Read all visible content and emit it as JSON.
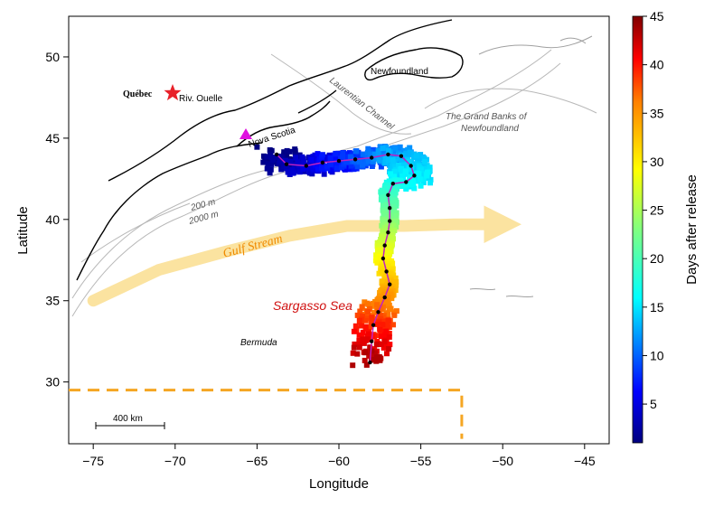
{
  "map": {
    "xlabel": "Longitude",
    "ylabel": "Latitude",
    "x_ticks": [
      "−75",
      "−70",
      "−65",
      "−60",
      "−55",
      "−50",
      "−45"
    ],
    "y_ticks": [
      "30",
      "35",
      "40",
      "45",
      "50"
    ],
    "xlim": [
      -76.5,
      -43.5
    ],
    "ylim": [
      26.2,
      52.5
    ],
    "labels": {
      "quebec": "Québec",
      "riv_ouelle": "Riv. Ouelle",
      "newfoundland": "Newfoundland",
      "laurentian": "Laurentian Channel",
      "grand_banks_1": "The Grand Banks of",
      "grand_banks_2": "Newfoundland",
      "nova_scotia": "Nova Scotia",
      "depth_200": "200 m",
      "depth_2000": "2000 m",
      "gulf_stream": "Gulf Stream",
      "sargasso": "Sargasso Sea",
      "bermuda": "Bermuda",
      "scale": "400 km"
    },
    "colors": {
      "gulf_stream": "#fbe3a0",
      "gulf_stream_text": "#f08a00",
      "sargasso_text": "#d01010",
      "boundary_dash": "#f5a623",
      "release_star": "#e8222a",
      "release_marker": "#e010e0",
      "track_line": "#c020c0"
    }
  },
  "colorbar": {
    "label": "Days after release",
    "ticks": [
      "5",
      "10",
      "15",
      "20",
      "25",
      "30",
      "35",
      "40",
      "45"
    ],
    "range": [
      1,
      45
    ],
    "colors": [
      "#00007f",
      "#0000ff",
      "#0080ff",
      "#00ffff",
      "#80ff80",
      "#ffff00",
      "#ff8000",
      "#ff0000",
      "#7f0000"
    ]
  },
  "chart_data": {
    "type": "scatter",
    "title": "",
    "xlabel": "Longitude",
    "ylabel": "Latitude",
    "xlim": [
      -76.5,
      -43.5
    ],
    "ylim": [
      26.2,
      52.5
    ],
    "color_variable": "Days after release",
    "track": {
      "lon": [
        -63.8,
        -63.2,
        -62.0,
        -61.0,
        -60.0,
        -59.0,
        -58.0,
        -57.0,
        -56.2,
        -55.6,
        -55.4,
        -55.9,
        -56.7,
        -57.0,
        -56.9,
        -56.9,
        -57.0,
        -57.2,
        -57.3,
        -57.1,
        -56.9,
        -57.2,
        -57.6,
        -57.9,
        -58.0,
        -58.1
      ],
      "lat": [
        44.0,
        43.4,
        43.3,
        43.5,
        43.6,
        43.7,
        43.8,
        44.0,
        43.9,
        43.3,
        42.7,
        42.3,
        42.2,
        41.5,
        40.7,
        39.9,
        39.2,
        38.4,
        37.6,
        36.8,
        36.0,
        35.2,
        34.3,
        33.5,
        32.5,
        31.2
      ],
      "day": [
        1,
        2,
        4,
        5,
        7,
        8,
        10,
        11,
        13,
        14,
        15,
        16,
        17,
        19,
        21,
        23,
        25,
        27,
        29,
        31,
        33,
        35,
        37,
        39,
        41,
        44
      ]
    },
    "release_site": {
      "name": "Riv. Ouelle",
      "lon": -70.0,
      "lat": 47.4
    },
    "release_point": {
      "name": "Nova Scotia",
      "lon": -63.8,
      "lat": 44.7
    },
    "gulf_stream_axis": {
      "lon": [
        -75.0,
        -71.0,
        -67.0,
        -63.0,
        -59.5,
        -56.0,
        -53.0,
        -50.0
      ],
      "lat": [
        35.0,
        36.9,
        38.0,
        39.0,
        39.6,
        39.6,
        39.7,
        39.7
      ]
    },
    "boundary": {
      "lat": 29.5,
      "lon_west": -76.5,
      "lon_east": -52.5,
      "lat_south": 26.5
    }
  }
}
